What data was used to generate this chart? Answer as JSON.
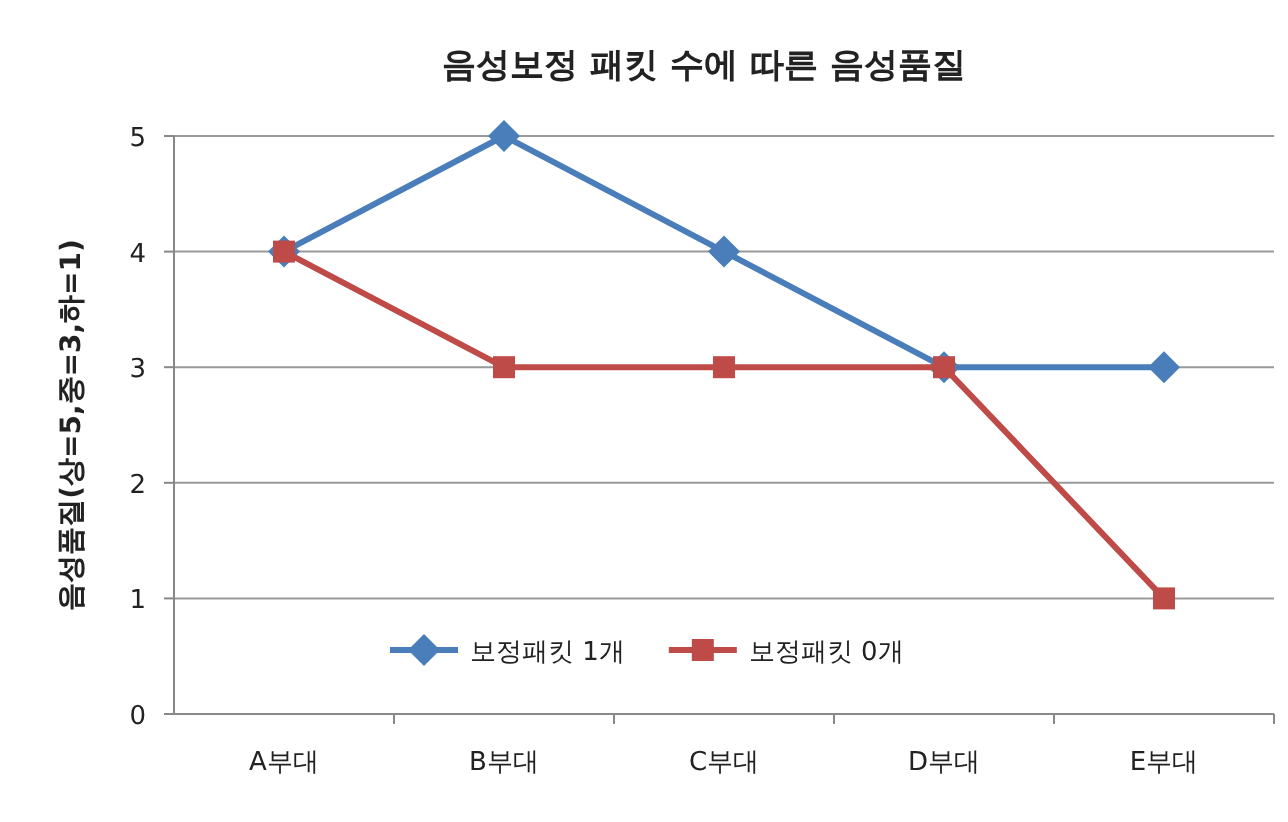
{
  "chart_data": {
    "type": "line",
    "title": "음성보정 패킷 수에 따른 음성품질",
    "ylabel": "음성품질(상=5,중=3,하=1)",
    "categories": [
      "A부대",
      "B부대",
      "C부대",
      "D부대",
      "E부대"
    ],
    "series": [
      {
        "name": "보정패킷 1개",
        "color": "#4a7ebb",
        "marker": "diamond",
        "values": [
          4,
          5,
          4,
          3,
          3
        ]
      },
      {
        "name": "보정패킷 0개",
        "color": "#be4b48",
        "marker": "square",
        "values": [
          4,
          3,
          3,
          3,
          1
        ]
      }
    ],
    "ylim": [
      0,
      5
    ],
    "yticks": [
      0,
      1,
      2,
      3,
      4,
      5
    ],
    "grid": "y",
    "legend": "bottom",
    "line_style": "solid"
  }
}
